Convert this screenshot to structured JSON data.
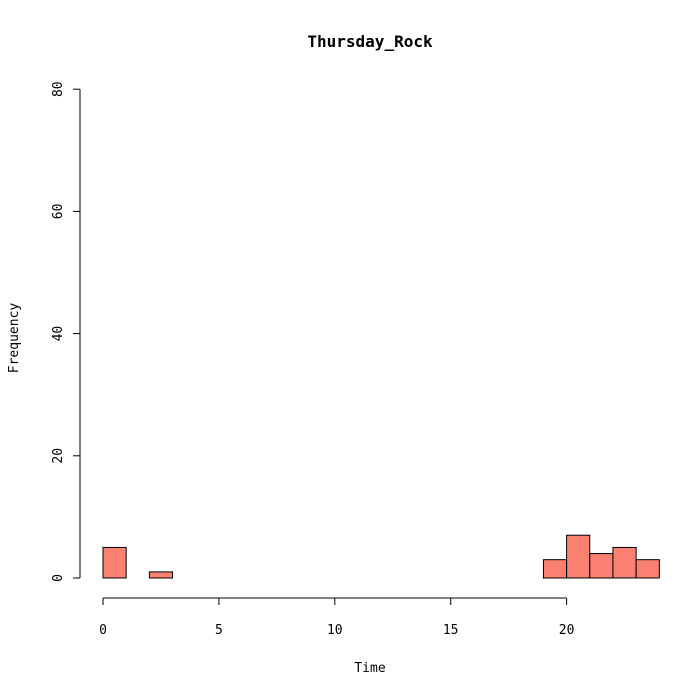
{
  "chart_data": {
    "type": "bar",
    "title": "Thursday_Rock",
    "xlabel": "Time",
    "ylabel": "Frequency",
    "xlim": [
      0,
      24
    ],
    "ylim": [
      0,
      80
    ],
    "x_ticks": [
      "0",
      "5",
      "10",
      "15",
      "20"
    ],
    "y_ticks": [
      "0",
      "20",
      "40",
      "60",
      "80"
    ],
    "bin_width": 1,
    "bins": [
      0,
      1,
      2,
      3,
      4,
      5,
      6,
      7,
      8,
      9,
      10,
      11,
      12,
      13,
      14,
      15,
      16,
      17,
      18,
      19,
      20,
      21,
      22,
      23
    ],
    "values": [
      5,
      0,
      1,
      0,
      0,
      0,
      0,
      0,
      0,
      0,
      0,
      0,
      0,
      0,
      0,
      0,
      0,
      0,
      0,
      3,
      7,
      4,
      5,
      3
    ],
    "bar_color": "#FA8072",
    "grid": false
  }
}
